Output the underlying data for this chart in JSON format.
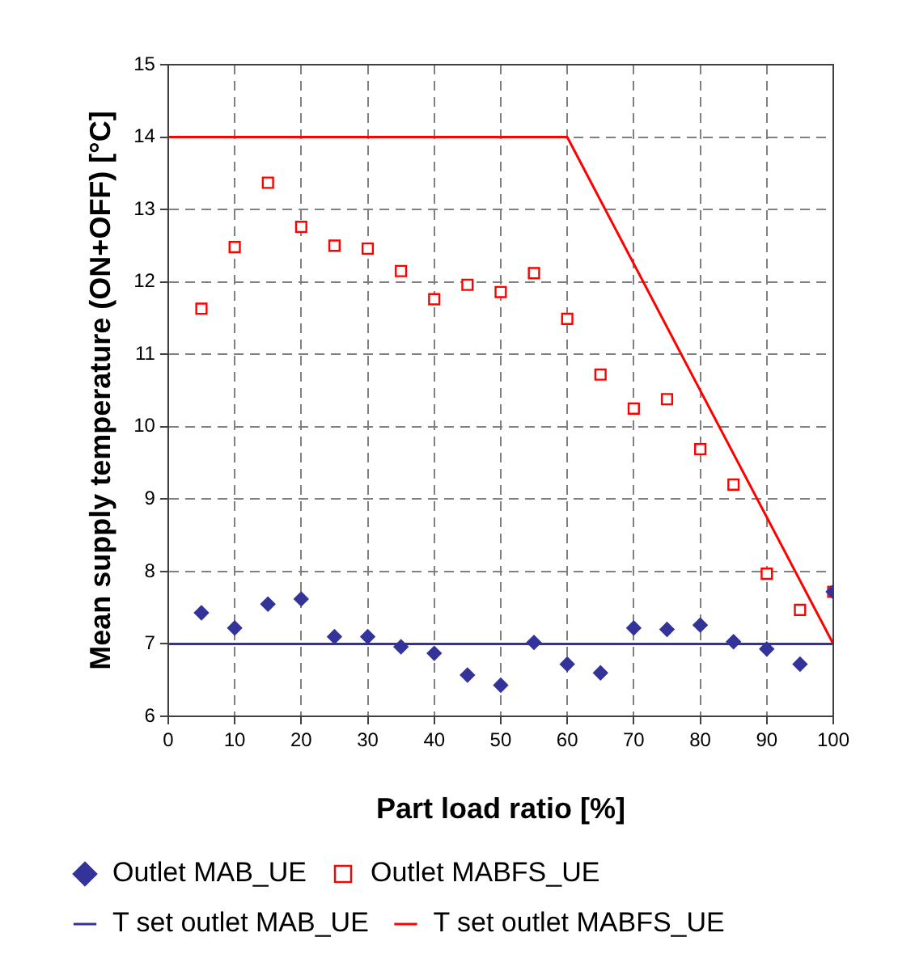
{
  "chart_data": {
    "type": "scatter",
    "xlabel": "Part load ratio [%]",
    "ylabel": "Mean supply temperature (ON+OFF) [°C]",
    "x": [
      5,
      10,
      15,
      20,
      25,
      30,
      35,
      40,
      45,
      50,
      55,
      60,
      65,
      70,
      75,
      80,
      85,
      90,
      95,
      100
    ],
    "series": [
      {
        "name": "Outlet MAB_UE",
        "color": "#333399",
        "marker": "diamond",
        "values": [
          7.43,
          7.22,
          7.55,
          7.62,
          7.1,
          7.1,
          6.96,
          6.87,
          6.57,
          6.43,
          7.02,
          6.72,
          6.6,
          7.22,
          7.2,
          7.26,
          7.03,
          6.93,
          6.72,
          7.72
        ]
      },
      {
        "name": "Outlet MABFS_UE",
        "color": "#ff0000",
        "marker": "square",
        "values": [
          11.63,
          12.48,
          13.37,
          12.76,
          12.5,
          12.46,
          12.15,
          11.76,
          11.96,
          11.86,
          12.12,
          11.49,
          10.72,
          10.25,
          10.38,
          9.69,
          9.2,
          7.97,
          7.47,
          7.72
        ]
      },
      {
        "name": "T set outlet MAB_UE",
        "type": "line",
        "color": "#333399",
        "marker": "none",
        "x": [
          0,
          100
        ],
        "values": [
          7,
          7
        ]
      },
      {
        "name": "T set outlet MABFS_UE",
        "type": "line",
        "color": "#ff0000",
        "marker": "none",
        "x": [
          0,
          60,
          100
        ],
        "values": [
          14,
          14,
          7
        ]
      }
    ],
    "xlim": [
      0,
      100
    ],
    "xticks": [
      0,
      10,
      20,
      30,
      40,
      50,
      60,
      70,
      80,
      90,
      100
    ],
    "ylim": [
      6,
      15
    ],
    "yticks": [
      6,
      7,
      8,
      9,
      10,
      11,
      12,
      13,
      14,
      15
    ],
    "grid": true,
    "legend": "bottom"
  }
}
